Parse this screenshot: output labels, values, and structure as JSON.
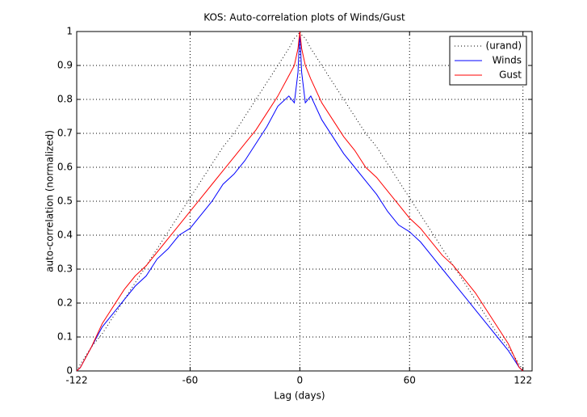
{
  "chart_data": {
    "type": "line",
    "title": "KOS: Auto-correlation plots of Winds/Gust",
    "x_label": "Lag (days)",
    "y_label": "auto-correlation (normalized)",
    "x": [
      -122,
      -120,
      -114,
      -108,
      -102,
      -96,
      -90,
      -84,
      -78,
      -72,
      -66,
      -60,
      -54,
      -48,
      -42,
      -36,
      -30,
      -24,
      -18,
      -12,
      -6,
      -3,
      -1,
      0,
      1,
      3,
      6,
      12,
      18,
      24,
      30,
      36,
      42,
      48,
      54,
      60,
      66,
      72,
      78,
      84,
      90,
      96,
      102,
      108,
      114,
      120,
      122
    ],
    "series": [
      {
        "name": "(urand)",
        "color": "#000000",
        "dash": "dotted",
        "values": [
          0,
          0.02,
          0.07,
          0.11,
          0.16,
          0.21,
          0.26,
          0.31,
          0.36,
          0.41,
          0.46,
          0.51,
          0.56,
          0.61,
          0.66,
          0.7,
          0.75,
          0.8,
          0.85,
          0.9,
          0.95,
          0.98,
          0.99,
          1,
          0.99,
          0.98,
          0.95,
          0.9,
          0.85,
          0.8,
          0.75,
          0.7,
          0.66,
          0.61,
          0.56,
          0.51,
          0.46,
          0.41,
          0.36,
          0.31,
          0.26,
          0.21,
          0.16,
          0.11,
          0.07,
          0.02,
          0
        ]
      },
      {
        "name": "Winds",
        "color": "#0000ff",
        "values": [
          0,
          0.01,
          0.07,
          0.13,
          0.17,
          0.21,
          0.25,
          0.28,
          0.33,
          0.36,
          0.4,
          0.42,
          0.46,
          0.5,
          0.55,
          0.58,
          0.62,
          0.67,
          0.72,
          0.78,
          0.81,
          0.79,
          0.88,
          1,
          0.88,
          0.79,
          0.81,
          0.74,
          0.69,
          0.64,
          0.6,
          0.56,
          0.52,
          0.47,
          0.43,
          0.41,
          0.38,
          0.34,
          0.3,
          0.26,
          0.22,
          0.18,
          0.14,
          0.1,
          0.06,
          0.01,
          0
        ]
      },
      {
        "name": "Gust",
        "color": "#ff0000",
        "values": [
          0,
          0.01,
          0.07,
          0.14,
          0.19,
          0.24,
          0.28,
          0.31,
          0.35,
          0.39,
          0.43,
          0.47,
          0.51,
          0.55,
          0.59,
          0.63,
          0.67,
          0.71,
          0.76,
          0.81,
          0.87,
          0.9,
          0.95,
          1,
          0.95,
          0.9,
          0.86,
          0.79,
          0.74,
          0.69,
          0.65,
          0.6,
          0.57,
          0.53,
          0.49,
          0.45,
          0.42,
          0.38,
          0.34,
          0.31,
          0.27,
          0.23,
          0.18,
          0.13,
          0.08,
          0.01,
          0
        ]
      }
    ],
    "xlim": [
      -122,
      127
    ],
    "xticks": [
      -122,
      -60,
      0,
      60,
      122
    ],
    "ylim": [
      0,
      1
    ],
    "yticks": [
      0,
      0.1,
      0.2,
      0.3,
      0.4,
      0.5,
      0.6,
      0.7,
      0.8,
      0.9,
      1
    ],
    "grid": true,
    "legend": "top-right"
  }
}
